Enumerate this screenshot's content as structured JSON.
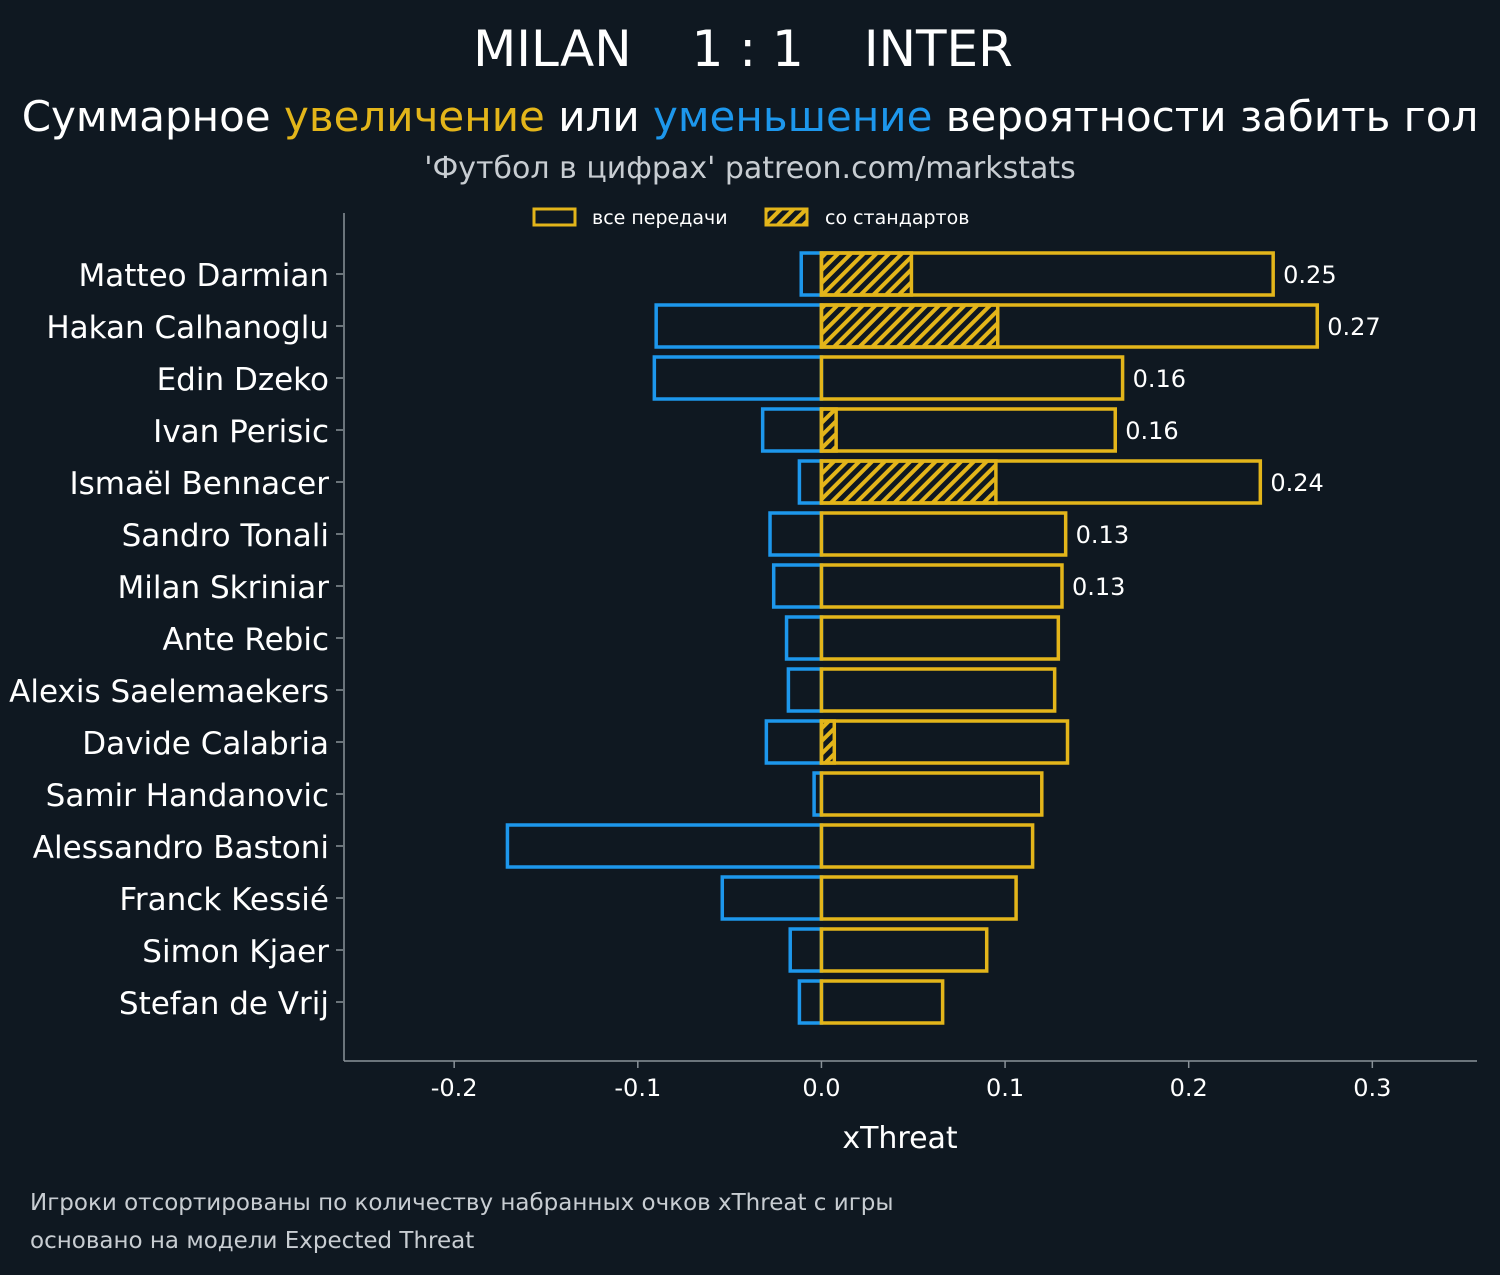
{
  "colors": {
    "background": "#0f1821",
    "increase": "#e3b51a",
    "decrease": "#1d97ec",
    "axis": "#8a9299"
  },
  "header": {
    "team_home": "MILAN",
    "score": "1 : 1",
    "team_away": "INTER",
    "subtitle_parts": [
      "Суммарное ",
      "увеличение",
      " или ",
      "уменьшение",
      " вероятности забить гол"
    ],
    "source": "'Футбол в цифрах' patreon.com/markstats"
  },
  "footer": {
    "line1": "Игроки отсортированы по количеству набранных очков xThreat с игры",
    "line2": "основано на модели Expected Threat"
  },
  "chart_data": {
    "type": "bar",
    "orientation": "horizontal",
    "xlabel": "xThreat",
    "xlim": [
      -0.26,
      0.357
    ],
    "xticks": [
      "-0.2",
      "-0.1",
      "0.0",
      "0.1",
      "0.2",
      "0.3"
    ],
    "xtick_values": [
      -0.2,
      -0.1,
      0.0,
      0.1,
      0.2,
      0.3
    ],
    "legend": {
      "placement": "top-center",
      "entries": [
        "все передачи",
        "со стандартов"
      ]
    },
    "categories": [
      "Matteo Darmian",
      "Hakan Calhanoglu",
      "Edin Dzeko",
      "Ivan Perisic",
      "Ismaël Bennacer",
      "Sandro Tonali",
      "Milan Skriniar",
      "Ante Rebic",
      "Alexis Saelemaekers",
      "Davide Calabria",
      "Samir Handanovic",
      "Alessandro Bastoni",
      "Franck Kessié",
      "Simon Kjaer",
      "Stefan de Vrij"
    ],
    "series": [
      {
        "name": "increase",
        "values": [
          0.246,
          0.27,
          0.164,
          0.16,
          0.239,
          0.133,
          0.131,
          0.129,
          0.127,
          0.134,
          0.12,
          0.115,
          0.106,
          0.09,
          0.066
        ]
      },
      {
        "name": "decrease",
        "values": [
          -0.011,
          -0.09,
          -0.091,
          -0.032,
          -0.012,
          -0.028,
          -0.026,
          -0.019,
          -0.018,
          -0.03,
          -0.004,
          -0.171,
          -0.054,
          -0.017,
          -0.012
        ]
      },
      {
        "name": "set_pieces",
        "values": [
          0.049,
          0.096,
          0,
          0.008,
          0.095,
          0,
          0,
          0,
          0,
          0.007,
          0,
          0,
          0,
          0,
          0
        ]
      }
    ],
    "data_labels": [
      "0.25",
      "0.27",
      "0.16",
      "0.16",
      "0.24",
      "0.13",
      "0.13",
      "",
      "",
      "",
      "",
      "",
      "",
      "",
      ""
    ]
  }
}
